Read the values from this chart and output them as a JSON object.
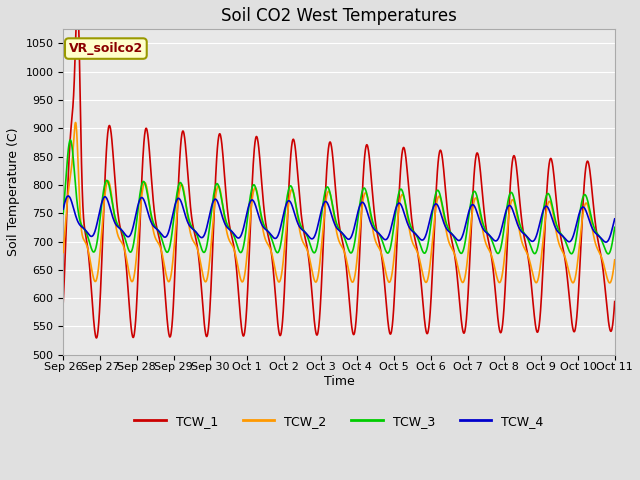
{
  "title": "Soil CO2 West Temperatures",
  "xlabel": "Time",
  "ylabel": "Soil Temperature (C)",
  "ylim": [
    500,
    1075
  ],
  "yticks": [
    500,
    550,
    600,
    650,
    700,
    750,
    800,
    850,
    900,
    950,
    1000,
    1050
  ],
  "bg_color": "#e0e0e0",
  "plot_bg_color": "#e8e8e8",
  "grid_color": "#ffffff",
  "line_colors": {
    "TCW_1": "#cc0000",
    "TCW_2": "#ff9900",
    "TCW_3": "#00cc00",
    "TCW_4": "#0000cc"
  },
  "legend_label": "VR_soilco2",
  "legend_box_color": "#ffffcc",
  "legend_box_edge": "#999900",
  "x_tick_labels": [
    "Sep 26",
    "Sep 27",
    "Sep 28",
    "Sep 29",
    "Sep 30",
    "Oct 1",
    "Oct 2",
    "Oct 3",
    "Oct 4",
    "Oct 5",
    "Oct 6",
    "Oct 7",
    "Oct 8",
    "Oct 9",
    "Oct 10",
    "Oct 11"
  ],
  "title_fontsize": 12,
  "axis_label_fontsize": 9,
  "tick_fontsize": 8
}
